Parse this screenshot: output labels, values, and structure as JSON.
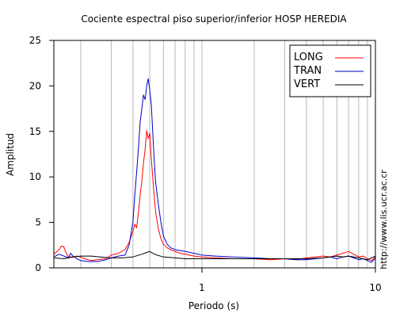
{
  "chart_data": {
    "type": "line",
    "title": "Cociente espectral piso superior/inferior  HOSP HEREDIA",
    "xlabel": "Periodo (s)",
    "ylabel": "Amplitud",
    "x_scale": "log",
    "xlim": [
      0.14,
      10
    ],
    "ylim": [
      0,
      25
    ],
    "x_ticks": [
      "1",
      "10"
    ],
    "y_ticks": [
      "0",
      "5",
      "10",
      "15",
      "20",
      "25"
    ],
    "vertical_grid": true,
    "legend_position": "top-right",
    "credit": "http://www.lis.ucr.ac.cr",
    "series": [
      {
        "name": "LONG",
        "color": "#ff0000",
        "x": [
          0.14,
          0.15,
          0.155,
          0.16,
          0.165,
          0.17,
          0.18,
          0.19,
          0.2,
          0.21,
          0.23,
          0.25,
          0.28,
          0.3,
          0.33,
          0.36,
          0.38,
          0.4,
          0.41,
          0.42,
          0.43,
          0.44,
          0.45,
          0.46,
          0.47,
          0.48,
          0.49,
          0.5,
          0.51,
          0.52,
          0.53,
          0.54,
          0.56,
          0.58,
          0.6,
          0.63,
          0.66,
          0.7,
          0.75,
          0.8,
          0.9,
          1.0,
          1.2,
          1.5,
          2,
          2.5,
          3,
          3.5,
          4,
          4.5,
          5,
          5.5,
          6,
          6.5,
          7,
          7.5,
          8,
          8.5,
          9,
          9.5,
          10
        ],
        "values": [
          1.5,
          2.0,
          2.4,
          2.3,
          1.6,
          1.2,
          1.2,
          1.3,
          1.2,
          1.0,
          0.8,
          0.9,
          1.0,
          1.4,
          1.6,
          2.0,
          2.8,
          4.0,
          4.8,
          4.4,
          6.0,
          8.0,
          9.5,
          11.5,
          13.0,
          15.1,
          14.2,
          14.8,
          12.0,
          10.0,
          8.0,
          6.2,
          4.3,
          3.2,
          2.6,
          2.2,
          2.0,
          1.8,
          1.6,
          1.5,
          1.3,
          1.2,
          1.1,
          1.0,
          1.0,
          0.9,
          1.0,
          0.9,
          1.1,
          1.2,
          1.3,
          1.2,
          1.4,
          1.6,
          1.8,
          1.5,
          1.2,
          1.3,
          1.0,
          0.8,
          1.2
        ]
      },
      {
        "name": "TRAN",
        "color": "#0000cc",
        "x": [
          0.14,
          0.15,
          0.16,
          0.17,
          0.175,
          0.18,
          0.19,
          0.2,
          0.22,
          0.25,
          0.28,
          0.3,
          0.33,
          0.36,
          0.38,
          0.4,
          0.41,
          0.42,
          0.43,
          0.44,
          0.45,
          0.46,
          0.47,
          0.48,
          0.49,
          0.5,
          0.51,
          0.52,
          0.53,
          0.54,
          0.56,
          0.58,
          0.6,
          0.63,
          0.66,
          0.7,
          0.75,
          0.8,
          0.9,
          1.0,
          1.2,
          1.5,
          2,
          2.5,
          3,
          3.5,
          4,
          4.5,
          5,
          5.5,
          6,
          6.5,
          7,
          7.5,
          8,
          8.5,
          9,
          9.5,
          10
        ],
        "values": [
          1.2,
          1.5,
          1.3,
          1.1,
          1.6,
          1.3,
          1.0,
          0.8,
          0.7,
          0.7,
          0.9,
          1.1,
          1.3,
          1.4,
          2.5,
          5.0,
          8.0,
          10.5,
          13.0,
          16.0,
          17.5,
          19.0,
          18.5,
          20.0,
          20.8,
          19.5,
          18.0,
          15.0,
          12.0,
          9.5,
          7.0,
          5.0,
          3.5,
          2.6,
          2.2,
          2.0,
          1.9,
          1.8,
          1.6,
          1.4,
          1.3,
          1.2,
          1.1,
          1.0,
          1.0,
          0.9,
          0.9,
          1.0,
          1.1,
          1.2,
          1.0,
          1.2,
          1.3,
          1.1,
          0.9,
          1.0,
          0.8,
          0.6,
          1.1
        ]
      },
      {
        "name": "VERT",
        "color": "#000000",
        "x": [
          0.14,
          0.16,
          0.18,
          0.2,
          0.23,
          0.26,
          0.3,
          0.35,
          0.4,
          0.45,
          0.48,
          0.5,
          0.52,
          0.55,
          0.6,
          0.7,
          0.8,
          0.9,
          1.0,
          1.2,
          1.5,
          2,
          2.5,
          3,
          3.5,
          4,
          5,
          6,
          6.5,
          7,
          8,
          9,
          10
        ],
        "values": [
          1.1,
          1.0,
          1.2,
          1.3,
          1.3,
          1.2,
          1.1,
          1.1,
          1.2,
          1.5,
          1.7,
          1.8,
          1.6,
          1.4,
          1.2,
          1.1,
          1.0,
          1.0,
          1.0,
          1.0,
          1.0,
          1.0,
          1.0,
          1.0,
          1.0,
          1.0,
          1.1,
          1.3,
          1.2,
          1.3,
          1.1,
          0.9,
          1.3
        ]
      }
    ]
  }
}
